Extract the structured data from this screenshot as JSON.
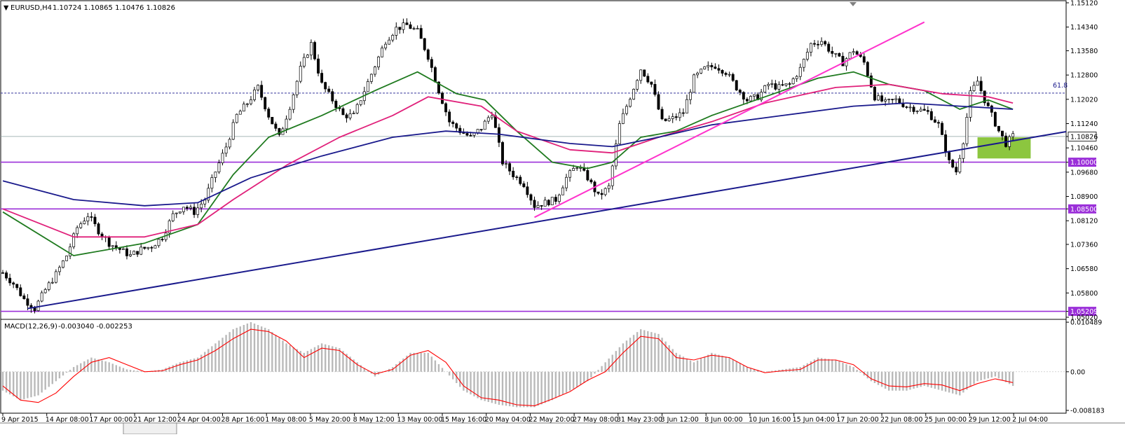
{
  "header": {
    "symbol": "EURUSD,H4",
    "ohlc": "1.10724 1.10865 1.10476 1.10826"
  },
  "macd_header": {
    "label": "MACD(12,26,9)",
    "values": "-0.003040 -0.002253"
  },
  "chart_data": [
    {
      "type": "candlestick",
      "title": "",
      "symbol": "EURUSD",
      "timeframe": "H4",
      "ylim": [
        1.0502,
        1.1512
      ],
      "y_ticks": [
        "1.15120",
        "1.14340",
        "1.13580",
        "1.12800",
        "1.12020",
        "1.11240",
        "1.10826",
        "1.10460",
        "1.10000",
        "1.09680",
        "1.08900",
        "1.08500",
        "1.08120",
        "1.07360",
        "1.06580",
        "1.05800",
        "1.05209",
        "1.05020"
      ],
      "x_ticks": [
        "9 Apr 2015",
        "14 Apr 08:00",
        "17 Apr 00:00",
        "21 Apr 12:00",
        "24 Apr 04:00",
        "28 Apr 16:00",
        "1 May 08:00",
        "5 May 20:00",
        "8 May 12:00",
        "13 May 00:00",
        "15 May 16:00",
        "20 May 04:00",
        "22 May 20:00",
        "27 May 08:00",
        "31 May 23:00",
        "3 Jun 12:00",
        "8 Jun 00:00",
        "10 Jun 16:00",
        "15 Jun 04:00",
        "17 Jun 20:00",
        "22 Jun 08:00",
        "25 Jun 00:00",
        "29 Jun 12:00",
        "2 Jul 04:00"
      ],
      "price_path": [
        [
          0,
          1.0645
        ],
        [
          3,
          1.061
        ],
        [
          6,
          1.056
        ],
        [
          9,
          1.053
        ],
        [
          12,
          1.059
        ],
        [
          15,
          1.064
        ],
        [
          18,
          1.07
        ],
        [
          21,
          1.079
        ],
        [
          24,
          1.083
        ],
        [
          27,
          1.078
        ],
        [
          30,
          1.074
        ],
        [
          33,
          1.072
        ],
        [
          36,
          1.07
        ],
        [
          39,
          1.072
        ],
        [
          42,
          1.073
        ],
        [
          45,
          1.076
        ],
        [
          48,
          1.083
        ],
        [
          51,
          1.086
        ],
        [
          54,
          1.084
        ],
        [
          57,
          1.088
        ],
        [
          60,
          1.097
        ],
        [
          63,
          1.105
        ],
        [
          66,
          1.115
        ],
        [
          69,
          1.119
        ],
        [
          72,
          1.124
        ],
        [
          75,
          1.115
        ],
        [
          78,
          1.108
        ],
        [
          81,
          1.118
        ],
        [
          84,
          1.13
        ],
        [
          87,
          1.138
        ],
        [
          90,
          1.125
        ],
        [
          93,
          1.12
        ],
        [
          96,
          1.115
        ],
        [
          99,
          1.115
        ],
        [
          102,
          1.123
        ],
        [
          105,
          1.131
        ],
        [
          108,
          1.139
        ],
        [
          111,
          1.143
        ],
        [
          114,
          1.144
        ],
        [
          117,
          1.142
        ],
        [
          120,
          1.134
        ],
        [
          123,
          1.123
        ],
        [
          126,
          1.113
        ],
        [
          129,
          1.11
        ],
        [
          132,
          1.108
        ],
        [
          135,
          1.111
        ],
        [
          138,
          1.116
        ],
        [
          141,
          1.1
        ],
        [
          144,
          1.096
        ],
        [
          147,
          1.093
        ],
        [
          150,
          1.086
        ],
        [
          153,
          1.087
        ],
        [
          156,
          1.088
        ],
        [
          159,
          1.095
        ],
        [
          162,
          1.099
        ],
        [
          165,
          1.095
        ],
        [
          168,
          1.089
        ],
        [
          171,
          1.092
        ],
        [
          174,
          1.112
        ],
        [
          177,
          1.121
        ],
        [
          180,
          1.13
        ],
        [
          183,
          1.125
        ],
        [
          186,
          1.113
        ],
        [
          189,
          1.114
        ],
        [
          192,
          1.116
        ],
        [
          195,
          1.127
        ],
        [
          198,
          1.13
        ],
        [
          201,
          1.131
        ],
        [
          204,
          1.129
        ],
        [
          207,
          1.124
        ],
        [
          210,
          1.12
        ],
        [
          213,
          1.121
        ],
        [
          216,
          1.125
        ],
        [
          219,
          1.124
        ],
        [
          222,
          1.125
        ],
        [
          225,
          1.13
        ],
        [
          228,
          1.138
        ],
        [
          231,
          1.139
        ],
        [
          234,
          1.135
        ],
        [
          237,
          1.132
        ],
        [
          240,
          1.136
        ],
        [
          243,
          1.132
        ],
        [
          246,
          1.121
        ],
        [
          249,
          1.119
        ],
        [
          252,
          1.12
        ],
        [
          255,
          1.118
        ],
        [
          258,
          1.117
        ],
        [
          261,
          1.116
        ],
        [
          264,
          1.112
        ],
        [
          267,
          1.1
        ],
        [
          269,
          1.097
        ],
        [
          271,
          1.107
        ],
        [
          273,
          1.122
        ],
        [
          275,
          1.126
        ],
        [
          277,
          1.12
        ],
        [
          279,
          1.115
        ],
        [
          281,
          1.11
        ],
        [
          283,
          1.106
        ],
        [
          285,
          1.1083
        ]
      ],
      "series": [
        {
          "name": "",
          "color": "#1f7a1f",
          "values": [
            [
              0,
              1.084
            ],
            [
              20,
              1.07
            ],
            [
              40,
              1.074
            ],
            [
              55,
              1.08
            ],
            [
              65,
              1.096
            ],
            [
              75,
              1.108
            ],
            [
              90,
              1.115
            ],
            [
              105,
              1.123
            ],
            [
              117,
              1.129
            ],
            [
              128,
              1.122
            ],
            [
              136,
              1.12
            ],
            [
              145,
              1.11
            ],
            [
              155,
              1.1
            ],
            [
              165,
              1.098
            ],
            [
              172,
              1.1
            ],
            [
              180,
              1.108
            ],
            [
              190,
              1.11
            ],
            [
              200,
              1.115
            ],
            [
              215,
              1.121
            ],
            [
              230,
              1.127
            ],
            [
              240,
              1.129
            ],
            [
              250,
              1.125
            ],
            [
              260,
              1.123
            ],
            [
              270,
              1.117
            ],
            [
              278,
              1.12
            ],
            [
              285,
              1.117
            ]
          ]
        },
        {
          "name": "",
          "color": "#e0207a",
          "values": [
            [
              0,
              1.085
            ],
            [
              20,
              1.076
            ],
            [
              40,
              1.076
            ],
            [
              55,
              1.08
            ],
            [
              65,
              1.088
            ],
            [
              80,
              1.099
            ],
            [
              95,
              1.108
            ],
            [
              110,
              1.115
            ],
            [
              120,
              1.121
            ],
            [
              135,
              1.118
            ],
            [
              145,
              1.11
            ],
            [
              160,
              1.104
            ],
            [
              172,
              1.103
            ],
            [
              185,
              1.108
            ],
            [
              200,
              1.113
            ],
            [
              215,
              1.119
            ],
            [
              235,
              1.124
            ],
            [
              250,
              1.125
            ],
            [
              265,
              1.122
            ],
            [
              278,
              1.121
            ],
            [
              285,
              1.119
            ]
          ]
        },
        {
          "name": "",
          "color": "#1a1a8c",
          "values": [
            [
              0,
              1.094
            ],
            [
              20,
              1.088
            ],
            [
              40,
              1.086
            ],
            [
              55,
              1.087
            ],
            [
              70,
              1.095
            ],
            [
              90,
              1.102
            ],
            [
              110,
              1.108
            ],
            [
              125,
              1.11
            ],
            [
              140,
              1.109
            ],
            [
              160,
              1.106
            ],
            [
              172,
              1.105
            ],
            [
              185,
              1.108
            ],
            [
              200,
              1.112
            ],
            [
              220,
              1.115
            ],
            [
              240,
              1.118
            ],
            [
              255,
              1.119
            ],
            [
              270,
              1.118
            ],
            [
              285,
              1.117
            ]
          ]
        }
      ],
      "horizontal_levels": [
        "1.10000",
        "1.08500",
        "1.05209"
      ],
      "current_price": "1.10826",
      "fib_label": "61.8",
      "fib_level": 1.1222,
      "trendlines": [
        {
          "color": "#1a1a8c",
          "from": [
            7,
            1.053
          ],
          "to": [
            300,
            1.1098
          ]
        },
        {
          "color": "#ff33cc",
          "from": [
            150,
            1.0823
          ],
          "to": [
            260,
            1.145
          ]
        }
      ],
      "highlight_zone": {
        "x0": 275,
        "x1": 290,
        "y0": 1.1012,
        "y1": 1.108,
        "color": "#8cc63f"
      }
    },
    {
      "type": "bar",
      "title": "MACD(12,26,9)",
      "ylim": [
        -0.00818,
        0.0105
      ],
      "y_ticks": [
        "0.010489",
        "0.00",
        "-0.008183"
      ],
      "histogram_path": [
        [
          0,
          -0.004
        ],
        [
          5,
          -0.006
        ],
        [
          10,
          -0.005
        ],
        [
          15,
          -0.002
        ],
        [
          20,
          0.001
        ],
        [
          25,
          0.003
        ],
        [
          30,
          0.002
        ],
        [
          35,
          0.0005
        ],
        [
          40,
          0.0
        ],
        [
          45,
          0.0005
        ],
        [
          50,
          0.002
        ],
        [
          55,
          0.003
        ],
        [
          60,
          0.006
        ],
        [
          65,
          0.009
        ],
        [
          70,
          0.0105
        ],
        [
          75,
          0.009
        ],
        [
          80,
          0.006
        ],
        [
          85,
          0.004
        ],
        [
          90,
          0.006
        ],
        [
          95,
          0.005
        ],
        [
          100,
          0.002
        ],
        [
          105,
          -0.001
        ],
        [
          110,
          0.001
        ],
        [
          115,
          0.004
        ],
        [
          120,
          0.004
        ],
        [
          125,
          0.0
        ],
        [
          130,
          -0.004
        ],
        [
          135,
          -0.006
        ],
        [
          140,
          -0.007
        ],
        [
          145,
          -0.0075
        ],
        [
          150,
          -0.0075
        ],
        [
          155,
          -0.006
        ],
        [
          160,
          -0.004
        ],
        [
          165,
          -0.002
        ],
        [
          170,
          0.002
        ],
        [
          175,
          0.006
        ],
        [
          180,
          0.009
        ],
        [
          185,
          0.008
        ],
        [
          190,
          0.004
        ],
        [
          195,
          0.002
        ],
        [
          200,
          0.004
        ],
        [
          205,
          0.003
        ],
        [
          210,
          0.001
        ],
        [
          215,
          0.0
        ],
        [
          220,
          0.0005
        ],
        [
          225,
          0.001
        ],
        [
          230,
          0.003
        ],
        [
          235,
          0.0025
        ],
        [
          240,
          0.001
        ],
        [
          245,
          -0.002
        ],
        [
          250,
          -0.004
        ],
        [
          255,
          -0.004
        ],
        [
          260,
          -0.003
        ],
        [
          265,
          -0.004
        ],
        [
          270,
          -0.005
        ],
        [
          275,
          -0.002
        ],
        [
          280,
          -0.001
        ],
        [
          285,
          -0.003
        ]
      ],
      "signal_path": [
        [
          0,
          -0.003
        ],
        [
          5,
          -0.006
        ],
        [
          10,
          -0.0065
        ],
        [
          15,
          -0.0045
        ],
        [
          20,
          -0.001
        ],
        [
          25,
          0.002
        ],
        [
          30,
          0.003
        ],
        [
          35,
          0.0015
        ],
        [
          40,
          0.0
        ],
        [
          45,
          0.0002
        ],
        [
          50,
          0.0015
        ],
        [
          55,
          0.0025
        ],
        [
          60,
          0.0045
        ],
        [
          65,
          0.007
        ],
        [
          70,
          0.009
        ],
        [
          75,
          0.0085
        ],
        [
          80,
          0.0065
        ],
        [
          85,
          0.003
        ],
        [
          90,
          0.005
        ],
        [
          95,
          0.0045
        ],
        [
          100,
          0.0015
        ],
        [
          105,
          -0.0005
        ],
        [
          110,
          0.0005
        ],
        [
          115,
          0.0035
        ],
        [
          120,
          0.0045
        ],
        [
          125,
          0.002
        ],
        [
          130,
          -0.003
        ],
        [
          135,
          -0.0055
        ],
        [
          140,
          -0.006
        ],
        [
          145,
          -0.007
        ],
        [
          150,
          -0.0072
        ],
        [
          155,
          -0.0058
        ],
        [
          160,
          -0.0042
        ],
        [
          165,
          -0.0018
        ],
        [
          170,
          0.0
        ],
        [
          175,
          0.004
        ],
        [
          180,
          0.0075
        ],
        [
          185,
          0.007
        ],
        [
          190,
          0.003
        ],
        [
          195,
          0.0025
        ],
        [
          200,
          0.0035
        ],
        [
          205,
          0.003
        ],
        [
          210,
          0.001
        ],
        [
          215,
          -0.0002
        ],
        [
          220,
          0.0002
        ],
        [
          225,
          0.0005
        ],
        [
          230,
          0.0025
        ],
        [
          235,
          0.0025
        ],
        [
          240,
          0.0015
        ],
        [
          245,
          -0.0015
        ],
        [
          250,
          -0.003
        ],
        [
          255,
          -0.0032
        ],
        [
          260,
          -0.0025
        ],
        [
          265,
          -0.0028
        ],
        [
          270,
          -0.004
        ],
        [
          275,
          -0.0025
        ],
        [
          280,
          -0.0015
        ],
        [
          285,
          -0.0023
        ]
      ]
    }
  ]
}
